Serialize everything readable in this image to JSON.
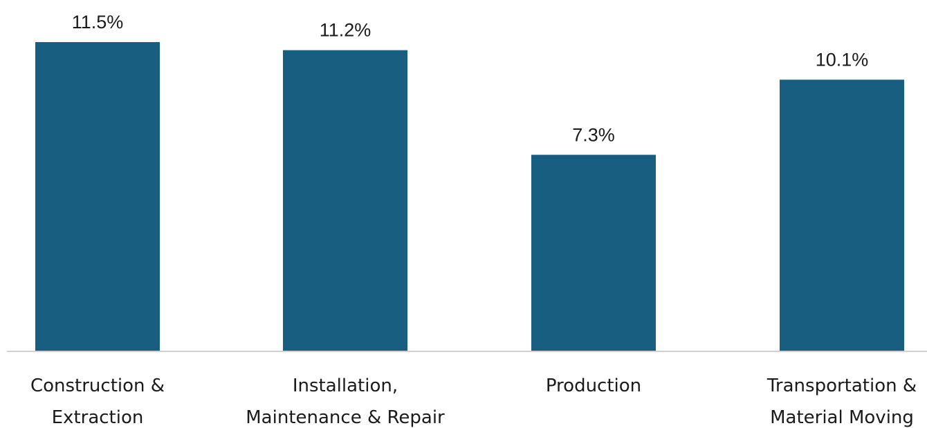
{
  "chart_data": {
    "type": "bar",
    "categories": [
      [
        "Construction &",
        "Extraction"
      ],
      [
        "Installation,",
        "Maintenance & Repair"
      ],
      [
        "Production"
      ],
      [
        "Transportation &",
        "Material Moving"
      ]
    ],
    "values": [
      11.5,
      11.2,
      7.3,
      10.1
    ],
    "value_labels": [
      "11.5%",
      "11.2%",
      "7.3%",
      "10.1%"
    ],
    "title": "",
    "xlabel": "",
    "ylabel": "",
    "ylim": [
      0,
      12
    ],
    "grid": false,
    "legend": "none",
    "bar_color": "#175e80",
    "axis_color": "#d0d0d0"
  }
}
